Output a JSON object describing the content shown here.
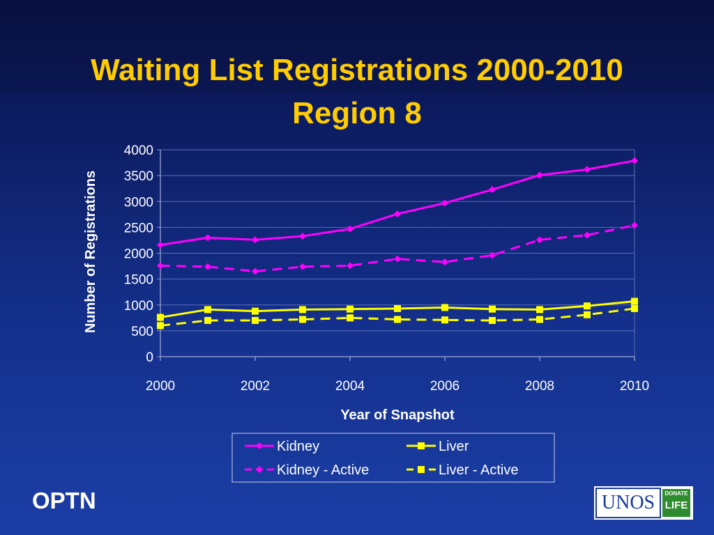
{
  "slide": {
    "title_line1": "Waiting List Registrations 2000-2010",
    "title_line2": "Region 8",
    "footer_left": "OPTN",
    "logo_name": "UNOS",
    "logo_badge_line1": "DONATE",
    "logo_badge_line2": "LIFE"
  },
  "colors": {
    "kidney": "#ff00ff",
    "liver": "#ffff00",
    "axis_text": "#ffffff",
    "grid": "#5a6fb8"
  },
  "chart_data": {
    "type": "line",
    "title": "",
    "xlabel": "Year of Snapshot",
    "ylabel": "Number of Registrations",
    "x": [
      2000,
      2001,
      2002,
      2003,
      2004,
      2005,
      2006,
      2007,
      2008,
      2009,
      2010
    ],
    "xticks": [
      "2000",
      "2002",
      "2004",
      "2006",
      "2008",
      "2010"
    ],
    "yticks": [
      "0",
      "500",
      "1000",
      "1500",
      "2000",
      "2500",
      "3000",
      "3500",
      "4000"
    ],
    "ylim": [
      0,
      4000
    ],
    "grid": true,
    "legend_position": "bottom",
    "series": [
      {
        "name": "Kidney",
        "color": "#ff00ff",
        "style": "solid",
        "marker": "diamond",
        "values": [
          2160,
          2300,
          2260,
          2330,
          2470,
          2760,
          2970,
          3230,
          3510,
          3620,
          3790
        ]
      },
      {
        "name": "Liver",
        "color": "#ffff00",
        "style": "solid",
        "marker": "square",
        "values": [
          760,
          910,
          880,
          910,
          920,
          930,
          950,
          920,
          910,
          980,
          1070
        ]
      },
      {
        "name": "Kidney - Active",
        "color": "#ff00ff",
        "style": "dashed",
        "marker": "diamond",
        "values": [
          1760,
          1740,
          1650,
          1740,
          1760,
          1890,
          1830,
          1960,
          2260,
          2350,
          2540
        ]
      },
      {
        "name": "Liver - Active",
        "color": "#ffff00",
        "style": "dashed",
        "marker": "square",
        "values": [
          600,
          700,
          700,
          720,
          750,
          720,
          710,
          700,
          720,
          810,
          930
        ]
      }
    ]
  }
}
